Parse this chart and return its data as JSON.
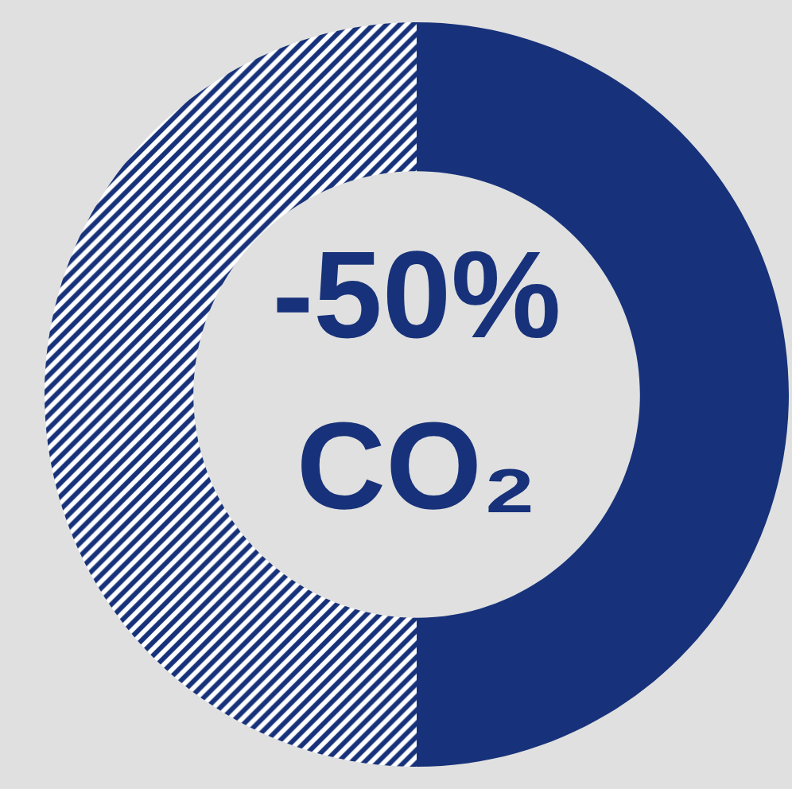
{
  "chart_data": {
    "type": "donut",
    "categories": [
      null,
      null
    ],
    "values": [
      50,
      50
    ],
    "colors": [
      "#17327a",
      "#ffffff"
    ],
    "annotations": [
      "-50%",
      "CO₂"
    ]
  }
}
